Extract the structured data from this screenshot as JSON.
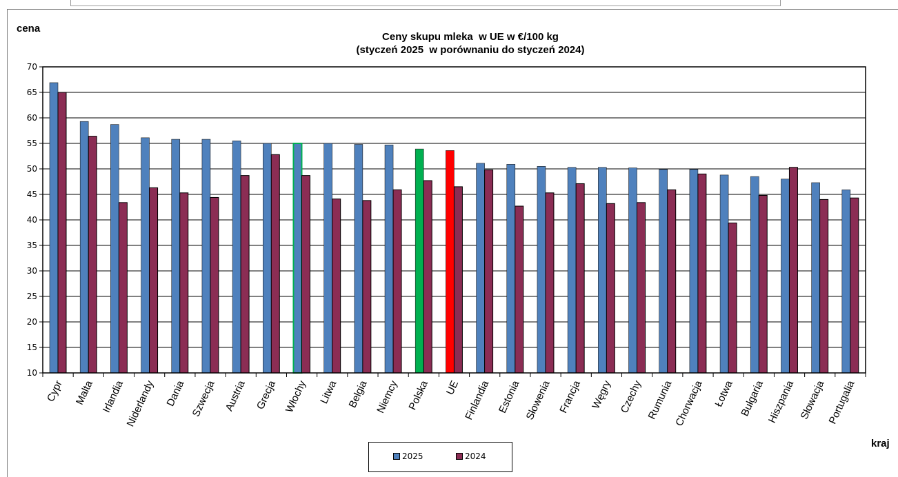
{
  "chart_data": {
    "type": "bar",
    "title": [
      "Ceny skupu mleka  w UE w €/100 kg",
      "(styczeń 2025  w porównaniu do styczeń 2024)"
    ],
    "ylabel": "cena",
    "xlabel": "kraj",
    "ylim": [
      10,
      70
    ],
    "yticks": [
      10,
      15,
      20,
      25,
      30,
      35,
      40,
      45,
      50,
      55,
      60,
      65,
      70
    ],
    "grid": true,
    "legend_position": "bottom",
    "categories": [
      "Cypr",
      "Malta",
      "Irlandia",
      "Niderlandy",
      "Dania",
      "Szwecja",
      "Austria",
      "Grecja",
      "Włochy",
      "Litwa",
      "Belgia",
      "Niemcy",
      "Polska",
      "UE",
      "Finlandia",
      "Estonia",
      "Słowenia",
      "Francja",
      "Węgry",
      "Czechy",
      "Rumunia",
      "Chorwacja",
      "Łotwa",
      "Bułgaria",
      "Hiszpania",
      "Słowacja",
      "Portugalia"
    ],
    "series": [
      {
        "name": "2025",
        "color": "#4f81bd",
        "values": [
          66.9,
          59.3,
          58.7,
          56.1,
          55.8,
          55.8,
          55.5,
          55.0,
          55.0,
          55.0,
          54.8,
          54.7,
          53.9,
          53.6,
          51.1,
          50.9,
          50.5,
          50.3,
          50.3,
          50.2,
          49.9,
          49.9,
          48.8,
          48.5,
          48.0,
          47.3,
          45.9
        ]
      },
      {
        "name": "2024",
        "color": "#8b2d54",
        "values": [
          65.0,
          56.4,
          43.4,
          46.3,
          45.3,
          44.4,
          48.7,
          52.8,
          48.7,
          44.1,
          43.8,
          45.9,
          47.7,
          46.5,
          49.8,
          42.7,
          45.3,
          47.1,
          43.2,
          43.4,
          45.9,
          49.0,
          39.4,
          44.8,
          50.3,
          44.0,
          44.3
        ]
      }
    ],
    "highlight_colors": {
      "Polska": "#00b050",
      "UE": "#ff0000",
      "Włochy_edge": "#00b050"
    }
  }
}
